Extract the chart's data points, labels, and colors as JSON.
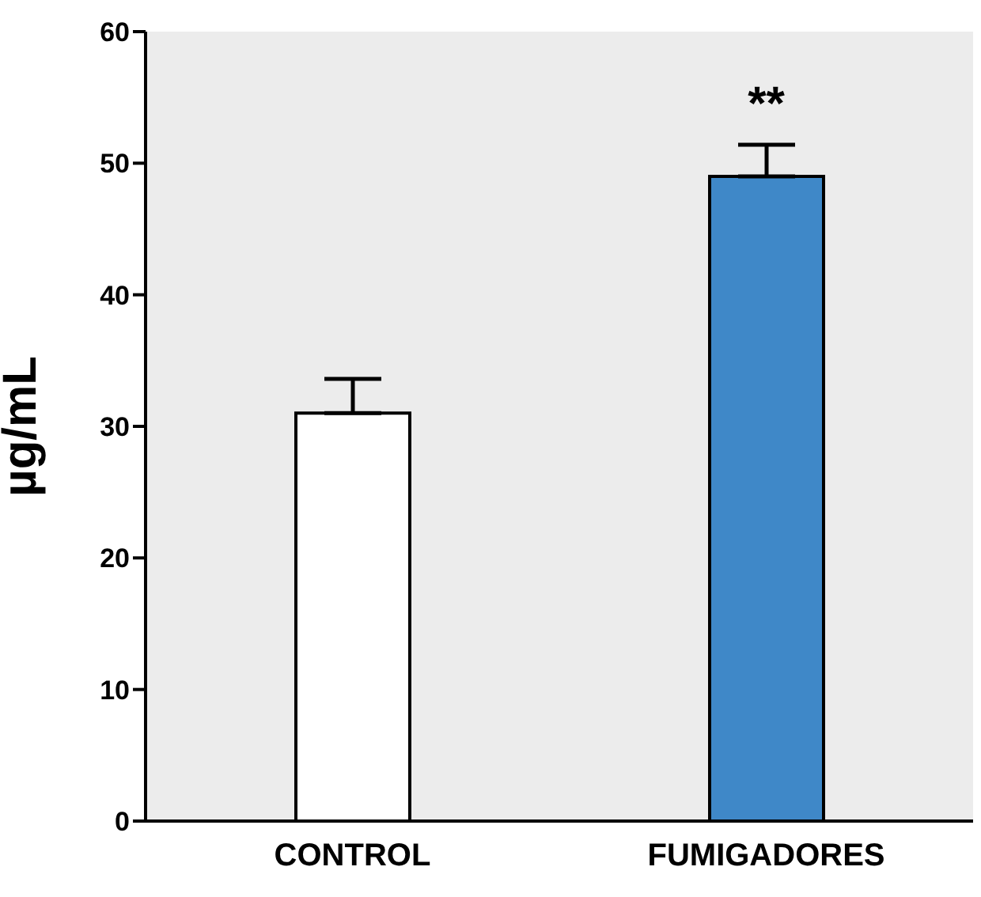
{
  "chart_data": {
    "type": "bar",
    "ylabel": "µg/mL",
    "categories": [
      "CONTROL",
      "FUMIGADORES"
    ],
    "values": [
      31,
      49
    ],
    "colors": [
      "#ffffff",
      "#3f88c8"
    ],
    "errors": [
      2.6,
      2.4
    ],
    "ylim": [
      0,
      60
    ],
    "yticks": [
      0,
      10,
      20,
      30,
      40,
      50,
      60
    ],
    "annotations": [
      "**"
    ],
    "grid": false
  }
}
